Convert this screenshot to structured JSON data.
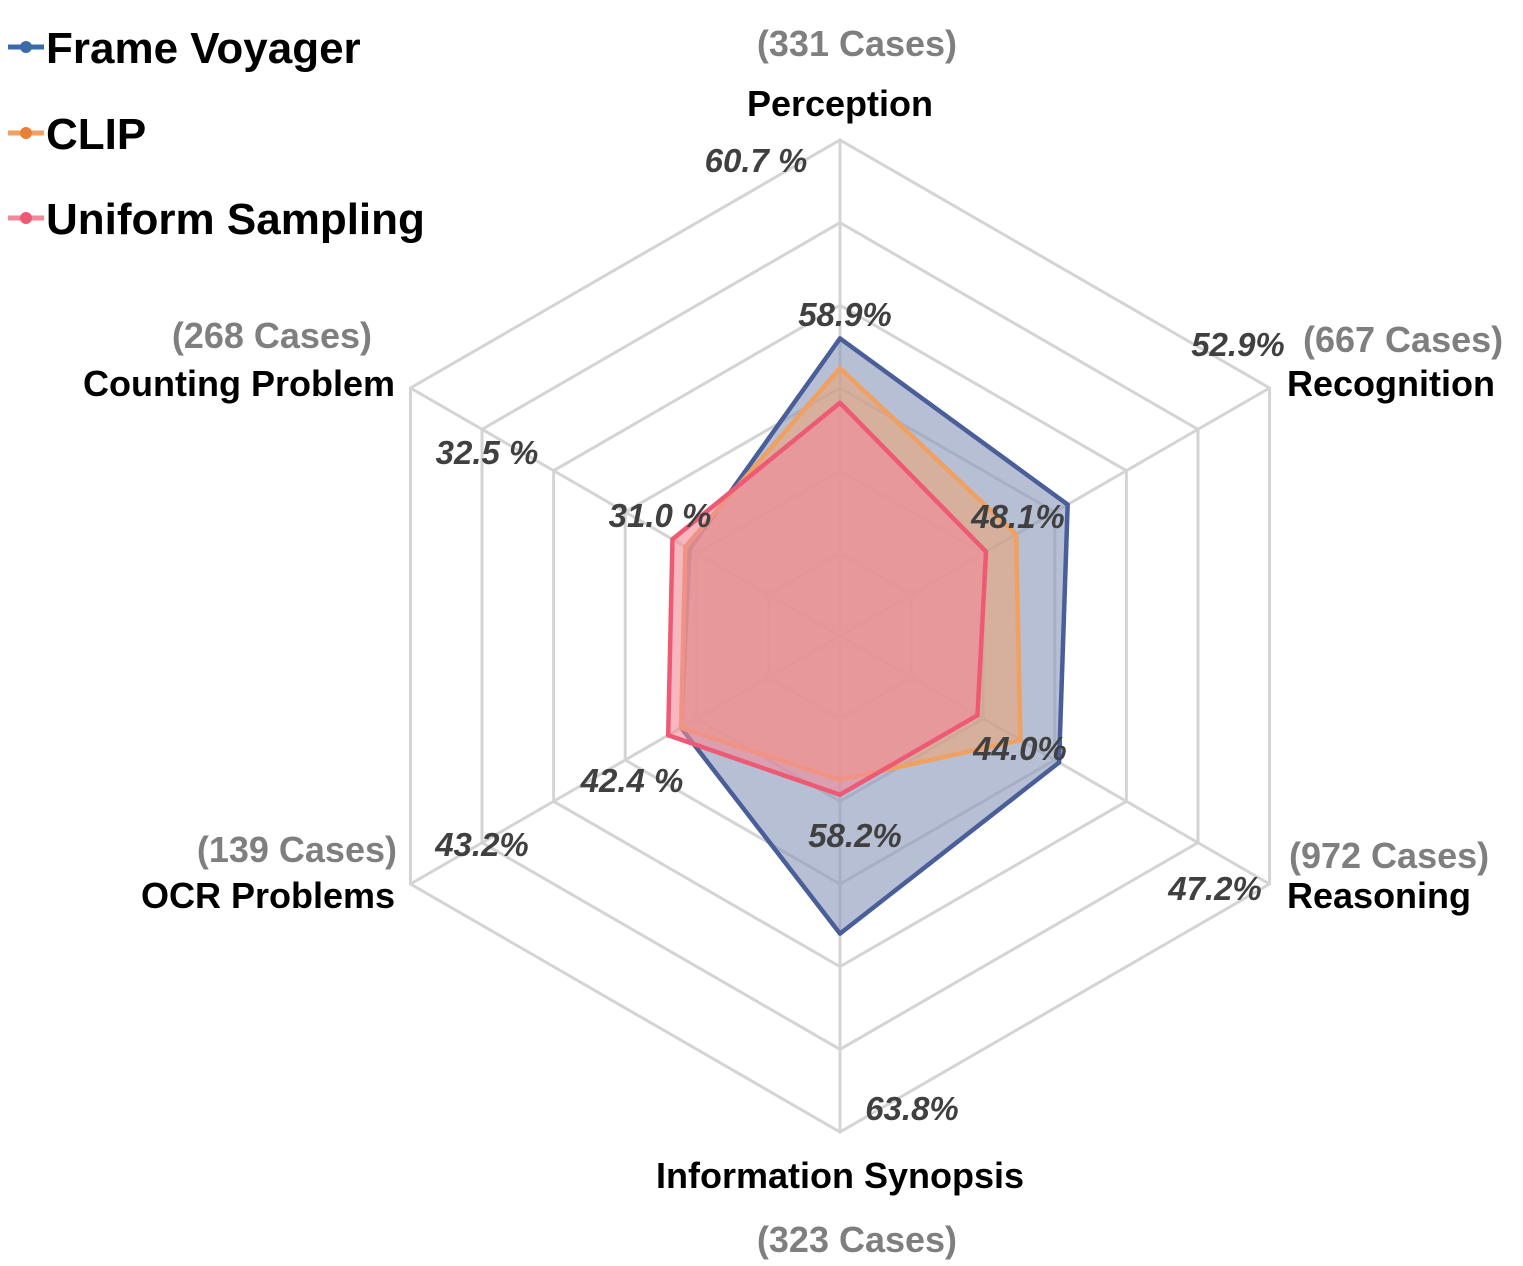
{
  "chart_data": {
    "type": "radar",
    "axes": [
      "Perception",
      "Recognition",
      "Reasoning",
      "Information Synopsis",
      "OCR Problems",
      "Counting Problem"
    ],
    "case_counts": [
      "(331 Cases)",
      "(667 Cases)",
      "(972 Cases)",
      "(323 Cases)",
      "(139 Cases)",
      "(268 Cases)"
    ],
    "rlim": [
      0,
      1
    ],
    "grid_levels": 6,
    "grid": true,
    "legend_position": "top-left",
    "series": [
      {
        "name": "Frame Voyager",
        "color": "#4a5f9a",
        "fill": "#8a97bb",
        "values": [
          0.6,
          0.53,
          0.51,
          0.6,
          0.37,
          0.35
        ]
      },
      {
        "name": "CLIP",
        "color": "#f0a060",
        "fill": "#e8a47a",
        "values": [
          0.54,
          0.41,
          0.42,
          0.29,
          0.37,
          0.36
        ]
      },
      {
        "name": "Uniform Sampling",
        "color": "#ee5a74",
        "fill": "#f28b9a",
        "values": [
          0.47,
          0.34,
          0.32,
          0.32,
          0.4,
          0.39
        ]
      }
    ],
    "value_labels": [
      {
        "text": "60.7 %",
        "axis": 0,
        "pos": "outer"
      },
      {
        "text": "58.9%",
        "axis": 0,
        "pos": "inner"
      },
      {
        "text": "52.9%",
        "axis": 1,
        "pos": "outer"
      },
      {
        "text": "48.1%",
        "axis": 1,
        "pos": "inner"
      },
      {
        "text": "47.2%",
        "axis": 2,
        "pos": "outer"
      },
      {
        "text": "44.0%",
        "axis": 2,
        "pos": "inner"
      },
      {
        "text": "63.8%",
        "axis": 3,
        "pos": "outer"
      },
      {
        "text": "58.2%",
        "axis": 3,
        "pos": "inner"
      },
      {
        "text": "43.2%",
        "axis": 4,
        "pos": "outer"
      },
      {
        "text": "42.4 %",
        "axis": 4,
        "pos": "inner"
      },
      {
        "text": "32.5 %",
        "axis": 5,
        "pos": "outer"
      },
      {
        "text": "31.0 %",
        "axis": 5,
        "pos": "inner"
      }
    ]
  }
}
